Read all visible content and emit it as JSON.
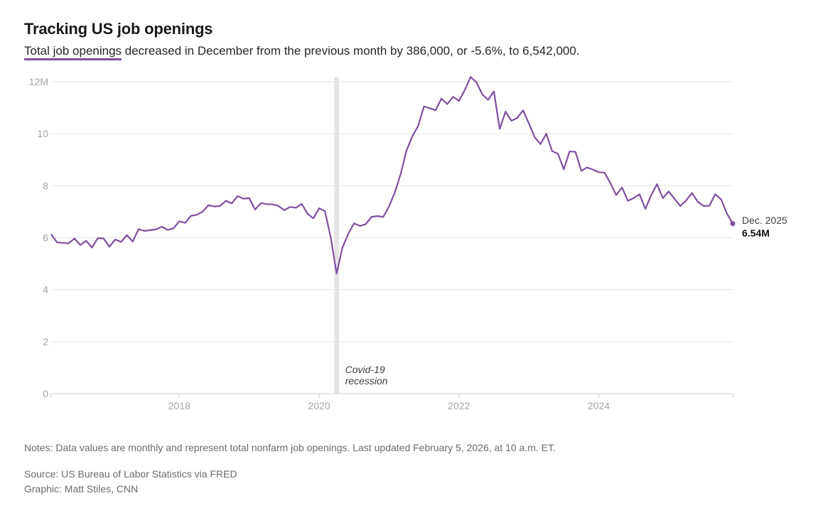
{
  "header": {
    "title": "Tracking US job openings",
    "subtitle_highlight": "Total job openings",
    "subtitle_rest": " decreased in December from the previous month by 386,000, or -5.6%, to 6,542,000."
  },
  "colors": {
    "line": "#7e4fa0",
    "grid": "#e6e6e6",
    "recession": "#e4e4e4",
    "axis_text": "#a3a3a3"
  },
  "chart_data": {
    "type": "line",
    "title": "Tracking US job openings",
    "xlabel": "",
    "ylabel": "",
    "unit": "millions of job openings",
    "frequency": "monthly",
    "start": "2016-03",
    "end": "2025-12",
    "x_ticks": [
      "2018",
      "2020",
      "2022",
      "2024"
    ],
    "x_tick_years": [
      2018,
      2020,
      2022,
      2024
    ],
    "y_ticks": [
      0,
      2,
      4,
      6,
      8,
      10,
      12
    ],
    "y_tick_labels": [
      "0",
      "2",
      "4",
      "6",
      "8",
      "10",
      "12M"
    ],
    "ylim": [
      0,
      12
    ],
    "grid": true,
    "recession": {
      "label_line1": "Covid-19",
      "label_line2": "recession",
      "date": 2020.25
    },
    "end_label": {
      "date": "Dec. 2025",
      "value_text": "6.54M"
    },
    "series": [
      {
        "name": "Total job openings",
        "values": [
          6.13,
          5.82,
          5.8,
          5.78,
          5.97,
          5.72,
          5.88,
          5.62,
          5.98,
          5.97,
          5.65,
          5.93,
          5.84,
          6.1,
          5.85,
          6.33,
          6.26,
          6.29,
          6.32,
          6.42,
          6.3,
          6.36,
          6.63,
          6.57,
          6.84,
          6.88,
          7.0,
          7.25,
          7.2,
          7.22,
          7.42,
          7.32,
          7.6,
          7.5,
          7.52,
          7.08,
          7.33,
          7.29,
          7.28,
          7.22,
          7.06,
          7.18,
          7.15,
          7.3,
          6.93,
          6.74,
          7.13,
          7.02,
          6.0,
          4.62,
          5.62,
          6.15,
          6.55,
          6.45,
          6.52,
          6.8,
          6.83,
          6.8,
          7.2,
          7.75,
          8.45,
          9.35,
          9.9,
          10.3,
          11.05,
          10.98,
          10.9,
          11.35,
          11.14,
          11.42,
          11.26,
          11.68,
          12.18,
          11.98,
          11.52,
          11.3,
          11.63,
          10.18,
          10.85,
          10.5,
          10.6,
          10.9,
          10.4,
          9.87,
          9.6,
          10.0,
          9.33,
          9.23,
          8.63,
          9.32,
          9.3,
          8.57,
          8.7,
          8.62,
          8.52,
          8.5,
          8.1,
          7.64,
          7.93,
          7.42,
          7.52,
          7.67,
          7.11,
          7.63,
          8.06,
          7.52,
          7.78,
          7.5,
          7.22,
          7.43,
          7.72,
          7.38,
          7.22,
          7.23,
          7.67,
          7.48,
          6.93,
          6.54
        ]
      }
    ]
  },
  "footer": {
    "notes": "Notes: Data values are monthly and represent total nonfarm job openings. Last updated February 5, 2026, at 10 a.m. ET.",
    "source": "Source: US Bureau of Labor Statistics via FRED",
    "credit": "Graphic: Matt Stiles, CNN"
  }
}
